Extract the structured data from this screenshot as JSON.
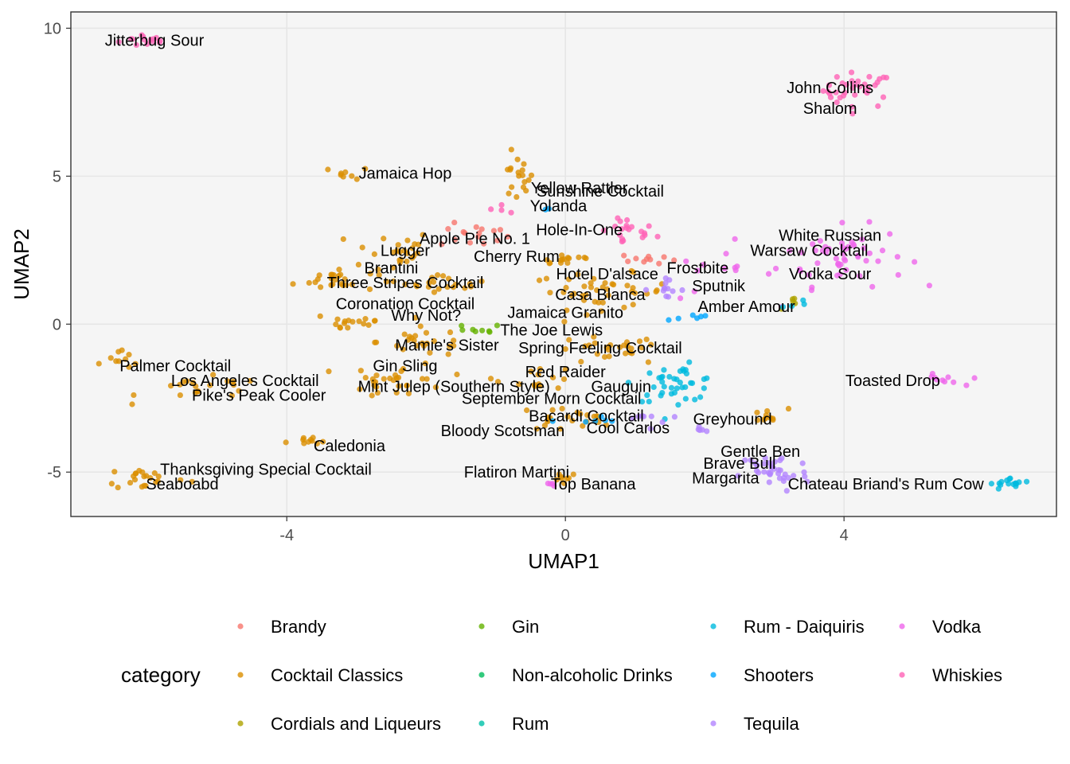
{
  "chart_data": {
    "type": "scatter",
    "xlabel": "UMAP1",
    "ylabel": "UMAP2",
    "xlim": [
      -7.1,
      7.05
    ],
    "ylim": [
      -6.5,
      10.55
    ],
    "x_ticks": [
      -4,
      0,
      4
    ],
    "y_ticks": [
      -5,
      0,
      5,
      10
    ],
    "grid": true,
    "legend": {
      "title": "category",
      "placement": "bottom",
      "entries": [
        {
          "label": "Brandy",
          "color": "#F8766D"
        },
        {
          "label": "Cocktail Classics",
          "color": "#DB8E00"
        },
        {
          "label": "Cordials and Liqueurs",
          "color": "#AEA200"
        },
        {
          "label": "Gin",
          "color": "#64B200"
        },
        {
          "label": "Non-alcoholic Drinks",
          "color": "#00BD5C"
        },
        {
          "label": "Rum",
          "color": "#00C1A7"
        },
        {
          "label": "Rum - Daiquiris",
          "color": "#00BADE"
        },
        {
          "label": "Shooters",
          "color": "#00A6FF"
        },
        {
          "label": "Tequila",
          "color": "#B385FF"
        },
        {
          "label": "Vodka",
          "color": "#EF67EB"
        },
        {
          "label": "Whiskies",
          "color": "#FF63B6"
        }
      ]
    },
    "labels": [
      {
        "text": "Jitterbug Sour",
        "x": -5.9,
        "y": 9.6
      },
      {
        "text": "John Collins",
        "x": 3.8,
        "y": 8.0
      },
      {
        "text": "Shalom",
        "x": 3.8,
        "y": 7.3
      },
      {
        "text": "Jamaica Hop",
        "x": -2.3,
        "y": 5.1
      },
      {
        "text": "Yellow Rattler",
        "x": 0.2,
        "y": 4.6
      },
      {
        "text": "Sunshine Cocktail",
        "x": 0.5,
        "y": 4.5
      },
      {
        "text": "Yolanda",
        "x": -0.1,
        "y": 4.0
      },
      {
        "text": "Hole-In-One",
        "x": 0.2,
        "y": 3.2
      },
      {
        "text": "Apple Pie No. 1",
        "x": -1.3,
        "y": 2.9
      },
      {
        "text": "Lugger",
        "x": -2.3,
        "y": 2.5
      },
      {
        "text": "Cherry Rum",
        "x": -0.7,
        "y": 2.3
      },
      {
        "text": "White Russian",
        "x": 3.8,
        "y": 3.0
      },
      {
        "text": "Warsaw Cocktail",
        "x": 3.5,
        "y": 2.5
      },
      {
        "text": "Brantini",
        "x": -2.5,
        "y": 1.9
      },
      {
        "text": "Frostbite",
        "x": 1.9,
        "y": 1.9
      },
      {
        "text": "Hotel D'alsace",
        "x": 0.6,
        "y": 1.7
      },
      {
        "text": "Vodka Sour",
        "x": 3.8,
        "y": 1.7
      },
      {
        "text": "Three Stripes Cocktail",
        "x": -2.3,
        "y": 1.4
      },
      {
        "text": "Sputnik",
        "x": 2.2,
        "y": 1.3
      },
      {
        "text": "Casa Blanca",
        "x": 0.5,
        "y": 1.0
      },
      {
        "text": "Coronation Cocktail",
        "x": -2.3,
        "y": 0.7
      },
      {
        "text": "Amber Amour",
        "x": 2.6,
        "y": 0.6
      },
      {
        "text": "Jamaica Granito",
        "x": 0.0,
        "y": 0.4
      },
      {
        "text": "Why Not?",
        "x": -2.0,
        "y": 0.3
      },
      {
        "text": "The Joe Lewis",
        "x": -0.2,
        "y": -0.2
      },
      {
        "text": "Mamie's Sister",
        "x": -1.7,
        "y": -0.7
      },
      {
        "text": "Spring Feeling Cocktail",
        "x": 0.5,
        "y": -0.8
      },
      {
        "text": "Palmer Cocktail",
        "x": -5.6,
        "y": -1.4
      },
      {
        "text": "Gin Sling",
        "x": -2.3,
        "y": -1.4
      },
      {
        "text": "Red Raider",
        "x": 0.0,
        "y": -1.6
      },
      {
        "text": "Los Angeles Cocktail",
        "x": -4.6,
        "y": -1.9
      },
      {
        "text": "Toasted Drop",
        "x": 4.7,
        "y": -1.9
      },
      {
        "text": "Mint Julep (Southern Style)",
        "x": -1.6,
        "y": -2.1
      },
      {
        "text": "Gauguin",
        "x": 0.8,
        "y": -2.1
      },
      {
        "text": "Pike's Peak Cooler",
        "x": -4.4,
        "y": -2.4
      },
      {
        "text": "September Morn Cocktail",
        "x": -0.2,
        "y": -2.5
      },
      {
        "text": "Bacardi Cocktail",
        "x": 0.3,
        "y": -3.1
      },
      {
        "text": "Greyhound",
        "x": 2.4,
        "y": -3.2
      },
      {
        "text": "Cool Carlos",
        "x": 0.9,
        "y": -3.5
      },
      {
        "text": "Bloody Scotsman",
        "x": -0.9,
        "y": -3.6
      },
      {
        "text": "Caledonia",
        "x": -3.1,
        "y": -4.1
      },
      {
        "text": "Gentle Ben",
        "x": 2.8,
        "y": -4.3
      },
      {
        "text": "Thanksgiving Special Cocktail",
        "x": -4.3,
        "y": -4.9
      },
      {
        "text": "Brave Bull",
        "x": 2.5,
        "y": -4.7
      },
      {
        "text": "Flatiron Martini",
        "x": -0.7,
        "y": -5.0
      },
      {
        "text": "Margarita",
        "x": 2.3,
        "y": -5.2
      },
      {
        "text": "Seaboabd",
        "x": -5.5,
        "y": -5.4
      },
      {
        "text": "Top Banana",
        "x": 0.4,
        "y": -5.4
      },
      {
        "text": "Chateau Briand's Rum Cow",
        "x": 4.6,
        "y": -5.4
      }
    ],
    "clusters": [
      {
        "category": "Whiskies",
        "cx": -6.0,
        "cy": 9.6,
        "sx": 0.2,
        "sy": 0.12,
        "n": 14
      },
      {
        "category": "Whiskies",
        "cx": 4.2,
        "cy": 7.9,
        "sx": 0.25,
        "sy": 0.3,
        "n": 34
      },
      {
        "category": "Cocktail Classics",
        "cx": -3.1,
        "cy": 5.1,
        "sx": 0.15,
        "sy": 0.1,
        "n": 8
      },
      {
        "category": "Cocktail Classics",
        "cx": -0.7,
        "cy": 4.9,
        "sx": 0.12,
        "sy": 0.4,
        "n": 18
      },
      {
        "category": "Whiskies",
        "cx": -0.9,
        "cy": 3.9,
        "sx": 0.15,
        "sy": 0.1,
        "n": 4
      },
      {
        "category": "Whiskies",
        "cx": 0.9,
        "cy": 3.1,
        "sx": 0.2,
        "sy": 0.25,
        "n": 20
      },
      {
        "category": "Brandy",
        "cx": -1.3,
        "cy": 3.0,
        "sx": 0.25,
        "sy": 0.2,
        "n": 16
      },
      {
        "category": "Cocktail Classics",
        "cx": -2.5,
        "cy": 2.5,
        "sx": 0.3,
        "sy": 0.35,
        "n": 24
      },
      {
        "category": "Cocktail Classics",
        "cx": 0.0,
        "cy": 2.2,
        "sx": 0.25,
        "sy": 0.12,
        "n": 14
      },
      {
        "category": "Vodka",
        "cx": 4.0,
        "cy": 2.3,
        "sx": 0.45,
        "sy": 0.5,
        "n": 52
      },
      {
        "category": "Brandy",
        "cx": 1.2,
        "cy": 2.2,
        "sx": 0.2,
        "sy": 0.1,
        "n": 10
      },
      {
        "category": "Cocktail Classics",
        "cx": -3.3,
        "cy": 1.5,
        "sx": 0.3,
        "sy": 0.2,
        "n": 26
      },
      {
        "category": "Cocktail Classics",
        "cx": -1.7,
        "cy": 1.4,
        "sx": 0.3,
        "sy": 0.15,
        "n": 20
      },
      {
        "category": "Cocktail Classics",
        "cx": 0.5,
        "cy": 1.1,
        "sx": 0.5,
        "sy": 0.3,
        "n": 42
      },
      {
        "category": "Tequila",
        "cx": 1.4,
        "cy": 1.2,
        "sx": 0.15,
        "sy": 0.15,
        "n": 12
      },
      {
        "category": "Vodka",
        "cx": 2.2,
        "cy": 1.6,
        "sx": 0.4,
        "sy": 0.4,
        "n": 12
      },
      {
        "category": "Cordials and Liqueurs",
        "cx": 3.3,
        "cy": 0.7,
        "sx": 0.1,
        "sy": 0.1,
        "n": 5
      },
      {
        "category": "Rum - Daiquiris",
        "cx": 3.3,
        "cy": 0.7,
        "sx": 0.12,
        "sy": 0.1,
        "n": 4
      },
      {
        "category": "Shooters",
        "cx": 1.8,
        "cy": 0.2,
        "sx": 0.2,
        "sy": 0.1,
        "n": 6
      },
      {
        "category": "Cocktail Classics",
        "cx": -3.1,
        "cy": 0.1,
        "sx": 0.3,
        "sy": 0.2,
        "n": 16
      },
      {
        "category": "Cocktail Classics",
        "cx": -2.0,
        "cy": -0.6,
        "sx": 0.35,
        "sy": 0.25,
        "n": 24
      },
      {
        "category": "Gin",
        "cx": -1.3,
        "cy": -0.2,
        "sx": 0.2,
        "sy": 0.1,
        "n": 8
      },
      {
        "category": "Cocktail Classics",
        "cx": 0.6,
        "cy": -0.9,
        "sx": 0.4,
        "sy": 0.25,
        "n": 26
      },
      {
        "category": "Cocktail Classics",
        "cx": -6.3,
        "cy": -1.2,
        "sx": 0.15,
        "sy": 0.15,
        "n": 10
      },
      {
        "category": "Cocktail Classics",
        "cx": -5.2,
        "cy": -2.2,
        "sx": 0.45,
        "sy": 0.2,
        "n": 20
      },
      {
        "category": "Cocktail Classics",
        "cx": -2.4,
        "cy": -1.9,
        "sx": 0.35,
        "sy": 0.3,
        "n": 30
      },
      {
        "category": "Cocktail Classics",
        "cx": -0.4,
        "cy": -1.8,
        "sx": 0.3,
        "sy": 0.2,
        "n": 14
      },
      {
        "category": "Rum - Daiquiris",
        "cx": 1.6,
        "cy": -2.0,
        "sx": 0.3,
        "sy": 0.3,
        "n": 40
      },
      {
        "category": "Vodka",
        "cx": 5.4,
        "cy": -1.9,
        "sx": 0.15,
        "sy": 0.1,
        "n": 10
      },
      {
        "category": "Cocktail Classics",
        "cx": 0.0,
        "cy": -3.2,
        "sx": 0.35,
        "sy": 0.2,
        "n": 22
      },
      {
        "category": "Tequila",
        "cx": 1.1,
        "cy": -3.2,
        "sx": 0.2,
        "sy": 0.15,
        "n": 8
      },
      {
        "category": "Cocktail Classics",
        "cx": 2.9,
        "cy": -3.1,
        "sx": 0.15,
        "sy": 0.12,
        "n": 10
      },
      {
        "category": "Tequila",
        "cx": 1.9,
        "cy": -3.6,
        "sx": 0.1,
        "sy": 0.08,
        "n": 5
      },
      {
        "category": "Cocktail Classics",
        "cx": -3.7,
        "cy": -4.0,
        "sx": 0.15,
        "sy": 0.1,
        "n": 10
      },
      {
        "category": "Tequila",
        "cx": 3.0,
        "cy": -5.0,
        "sx": 0.25,
        "sy": 0.35,
        "n": 36
      },
      {
        "category": "Cocktail Classics",
        "cx": -6.0,
        "cy": -5.2,
        "sx": 0.3,
        "sy": 0.2,
        "n": 22
      },
      {
        "category": "Cocktail Classics",
        "cx": 0.0,
        "cy": -5.15,
        "sx": 0.1,
        "sy": 0.08,
        "n": 8
      },
      {
        "category": "Vodka",
        "cx": -0.2,
        "cy": -5.4,
        "sx": 0.1,
        "sy": 0.05,
        "n": 4
      },
      {
        "category": "Rum - Daiquiris",
        "cx": 6.4,
        "cy": -5.4,
        "sx": 0.15,
        "sy": 0.1,
        "n": 16
      },
      {
        "category": "Shooters",
        "cx": -0.3,
        "cy": 3.9,
        "sx": 0.05,
        "sy": 0.05,
        "n": 2
      },
      {
        "category": "Shooters",
        "cx": 0.4,
        "cy": -3.3,
        "sx": 0.2,
        "sy": 0.1,
        "n": 6
      }
    ]
  }
}
